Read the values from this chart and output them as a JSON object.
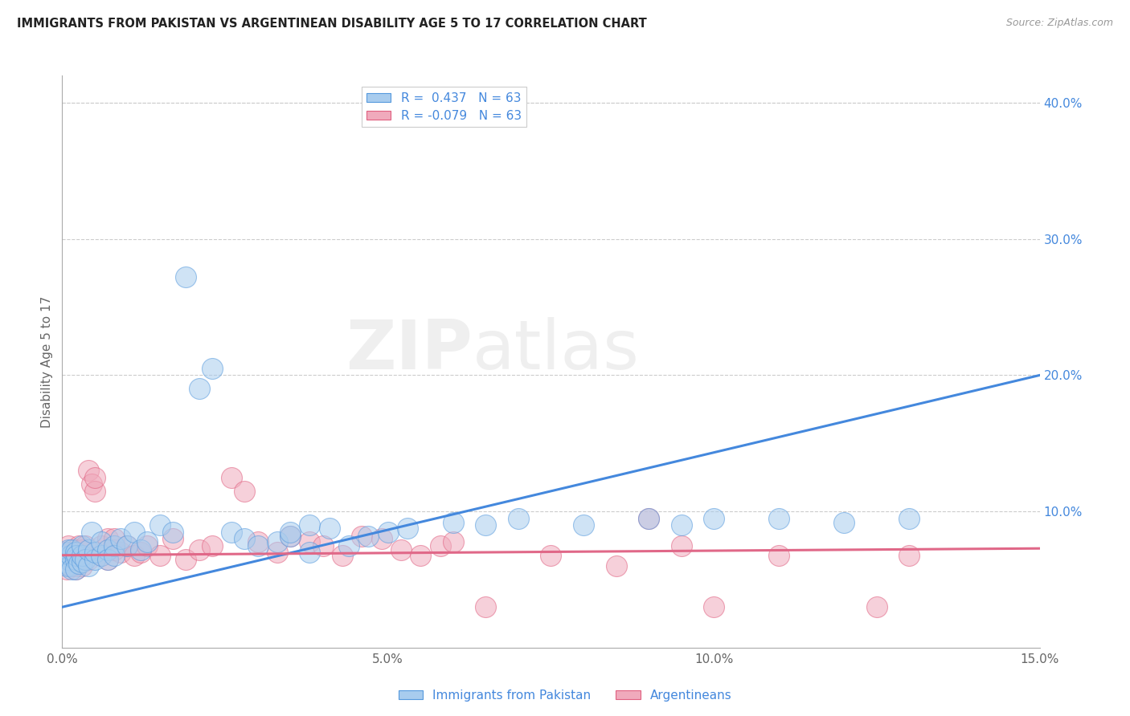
{
  "title": "IMMIGRANTS FROM PAKISTAN VS ARGENTINEAN DISABILITY AGE 5 TO 17 CORRELATION CHART",
  "source": "Source: ZipAtlas.com",
  "ylabel": "Disability Age 5 to 17",
  "legend_bottom": [
    "Immigrants from Pakistan",
    "Argentineans"
  ],
  "r_blue": 0.437,
  "r_pink": -0.079,
  "n_blue": 63,
  "n_pink": 63,
  "xlim": [
    0.0,
    0.15
  ],
  "ylim": [
    0.0,
    0.42
  ],
  "xticks": [
    0.0,
    0.05,
    0.1,
    0.15
  ],
  "xtick_labels": [
    "0.0%",
    "5.0%",
    "10.0%",
    "15.0%"
  ],
  "yticks_right": [
    0.0,
    0.1,
    0.2,
    0.3,
    0.4
  ],
  "ytick_labels_right": [
    "",
    "10.0%",
    "20.0%",
    "30.0%",
    "40.0%"
  ],
  "blue_fill": "#A8CCEE",
  "pink_fill": "#F0AABC",
  "blue_edge": "#5599DD",
  "pink_edge": "#E06080",
  "blue_line_color": "#4488DD",
  "pink_line_color": "#E06888",
  "grid_color": "#CCCCCC",
  "blue_scatter_x": [
    0.0003,
    0.0005,
    0.0007,
    0.0008,
    0.001,
    0.001,
    0.0012,
    0.0013,
    0.0015,
    0.0015,
    0.002,
    0.002,
    0.002,
    0.0022,
    0.0025,
    0.003,
    0.003,
    0.003,
    0.0035,
    0.004,
    0.004,
    0.0045,
    0.005,
    0.005,
    0.006,
    0.006,
    0.007,
    0.007,
    0.008,
    0.008,
    0.009,
    0.01,
    0.011,
    0.012,
    0.013,
    0.015,
    0.017,
    0.019,
    0.021,
    0.023,
    0.026,
    0.028,
    0.03,
    0.033,
    0.035,
    0.038,
    0.035,
    0.038,
    0.041,
    0.044,
    0.047,
    0.05,
    0.053,
    0.06,
    0.065,
    0.07,
    0.08,
    0.09,
    0.095,
    0.1,
    0.11,
    0.12,
    0.13
  ],
  "blue_scatter_y": [
    0.063,
    0.067,
    0.06,
    0.07,
    0.065,
    0.072,
    0.06,
    0.068,
    0.058,
    0.072,
    0.065,
    0.07,
    0.058,
    0.068,
    0.062,
    0.063,
    0.068,
    0.075,
    0.065,
    0.06,
    0.072,
    0.085,
    0.065,
    0.07,
    0.068,
    0.078,
    0.072,
    0.065,
    0.075,
    0.068,
    0.08,
    0.075,
    0.085,
    0.072,
    0.078,
    0.09,
    0.085,
    0.272,
    0.19,
    0.205,
    0.085,
    0.08,
    0.075,
    0.078,
    0.082,
    0.07,
    0.085,
    0.09,
    0.088,
    0.075,
    0.082,
    0.085,
    0.088,
    0.092,
    0.09,
    0.095,
    0.09,
    0.095,
    0.09,
    0.095,
    0.095,
    0.092,
    0.095
  ],
  "pink_scatter_x": [
    0.0003,
    0.0005,
    0.0007,
    0.0008,
    0.001,
    0.001,
    0.0012,
    0.0013,
    0.0015,
    0.0015,
    0.002,
    0.002,
    0.002,
    0.0022,
    0.0025,
    0.003,
    0.003,
    0.003,
    0.0035,
    0.004,
    0.004,
    0.0045,
    0.005,
    0.005,
    0.006,
    0.006,
    0.007,
    0.007,
    0.008,
    0.008,
    0.009,
    0.01,
    0.011,
    0.012,
    0.013,
    0.015,
    0.017,
    0.019,
    0.021,
    0.023,
    0.026,
    0.028,
    0.03,
    0.033,
    0.035,
    0.038,
    0.04,
    0.043,
    0.046,
    0.049,
    0.052,
    0.055,
    0.058,
    0.06,
    0.065,
    0.075,
    0.085,
    0.09,
    0.095,
    0.1,
    0.11,
    0.125,
    0.13
  ],
  "pink_scatter_y": [
    0.065,
    0.07,
    0.058,
    0.068,
    0.062,
    0.075,
    0.06,
    0.07,
    0.065,
    0.068,
    0.058,
    0.072,
    0.06,
    0.065,
    0.075,
    0.068,
    0.06,
    0.072,
    0.075,
    0.065,
    0.13,
    0.12,
    0.115,
    0.125,
    0.068,
    0.075,
    0.08,
    0.065,
    0.072,
    0.08,
    0.07,
    0.075,
    0.068,
    0.07,
    0.075,
    0.068,
    0.08,
    0.065,
    0.072,
    0.075,
    0.125,
    0.115,
    0.078,
    0.07,
    0.082,
    0.078,
    0.075,
    0.068,
    0.082,
    0.08,
    0.072,
    0.068,
    0.075,
    0.078,
    0.03,
    0.068,
    0.06,
    0.095,
    0.075,
    0.03,
    0.068,
    0.03,
    0.068
  ],
  "blue_line_x0": 0.0,
  "blue_line_y0": 0.03,
  "blue_line_x1": 0.15,
  "blue_line_y1": 0.2,
  "pink_line_x0": 0.0,
  "pink_line_y0": 0.068,
  "pink_line_x1": 0.15,
  "pink_line_y1": 0.073
}
